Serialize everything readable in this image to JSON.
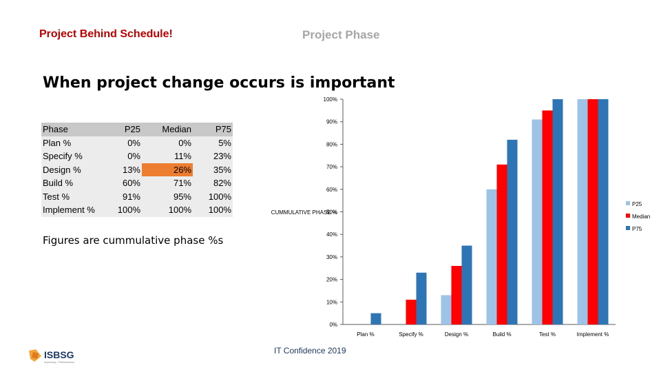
{
  "header": {
    "left": "Project Behind Schedule!",
    "right": "Project Phase"
  },
  "main_title": "When project change occurs is important",
  "table": {
    "headers": [
      "Phase",
      "P25",
      "Median",
      "P75"
    ],
    "rows": [
      [
        "Plan %",
        "0%",
        "0%",
        "5%"
      ],
      [
        "Specify %",
        "0%",
        "11%",
        "23%"
      ],
      [
        "Design %",
        "13%",
        "26%",
        "35%"
      ],
      [
        "Build %",
        "60%",
        "71%",
        "82%"
      ],
      [
        "Test %",
        "91%",
        "95%",
        "100%"
      ],
      [
        "Implement %",
        "100%",
        "100%",
        "100%"
      ]
    ],
    "highlight_color": "#ed7d31"
  },
  "note": "Figures are cummulative phase %s",
  "footer": "IT Confidence 2019",
  "logo": {
    "text": "ISBSG",
    "tagline": "Improving · Performance",
    "icon": "isbsg-logo"
  },
  "chart_data": {
    "type": "bar",
    "categories": [
      "Plan %",
      "Specify %",
      "Design %",
      "Build %",
      "Test %",
      "Implement %"
    ],
    "series": [
      {
        "name": "P25",
        "color": "#9dc3e6",
        "values": [
          0,
          0,
          13,
          60,
          91,
          100
        ]
      },
      {
        "name": "Median",
        "color": "#ff0000",
        "values": [
          0,
          11,
          26,
          71,
          95,
          100
        ]
      },
      {
        "name": "P75",
        "color": "#2e75b6",
        "values": [
          5,
          23,
          35,
          82,
          100,
          100
        ]
      }
    ],
    "ylabel": "CUMMULATIVE PHASE %",
    "ylim": [
      0,
      100
    ],
    "yticks": [
      "0%",
      "10%",
      "20%",
      "30%",
      "40%",
      "50%",
      "60%",
      "70%",
      "80%",
      "90%",
      "100%"
    ],
    "grid": false,
    "legend": "right"
  }
}
